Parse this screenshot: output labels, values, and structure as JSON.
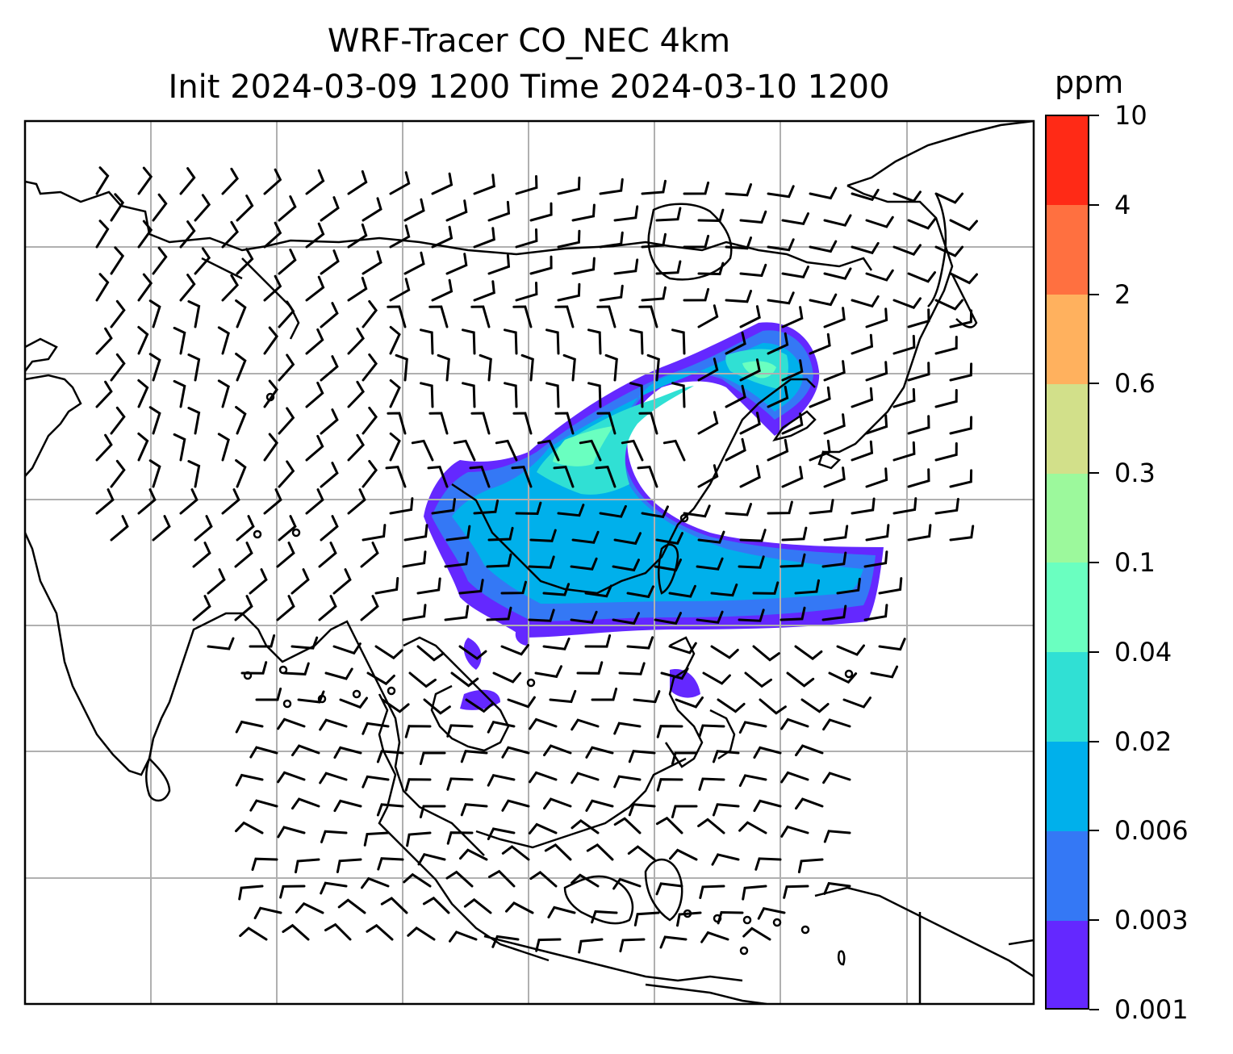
{
  "title": {
    "line1": "WRF-Tracer CO_NEC 4km",
    "line2": "Init 2024-03-09 1200 Time 2024-03-10 1200"
  },
  "colorbar": {
    "unit": "ppm",
    "levels": [
      "0.001",
      "0.003",
      "0.006",
      "0.02",
      "0.04",
      "0.1",
      "0.3",
      "0.6",
      "2",
      "4",
      "10"
    ],
    "colors": [
      "#6428ff",
      "#3478f5",
      "#00b0eb",
      "#30e0d4",
      "#6affc0",
      "#9cf99c",
      "#d2e08a",
      "#ffb15e",
      "#ff7040",
      "#ff2a16"
    ]
  },
  "map": {
    "projection_grid": "on",
    "coastlines": "black",
    "wind_barbs": "black",
    "tracer_plume": "CO_NEC"
  }
}
